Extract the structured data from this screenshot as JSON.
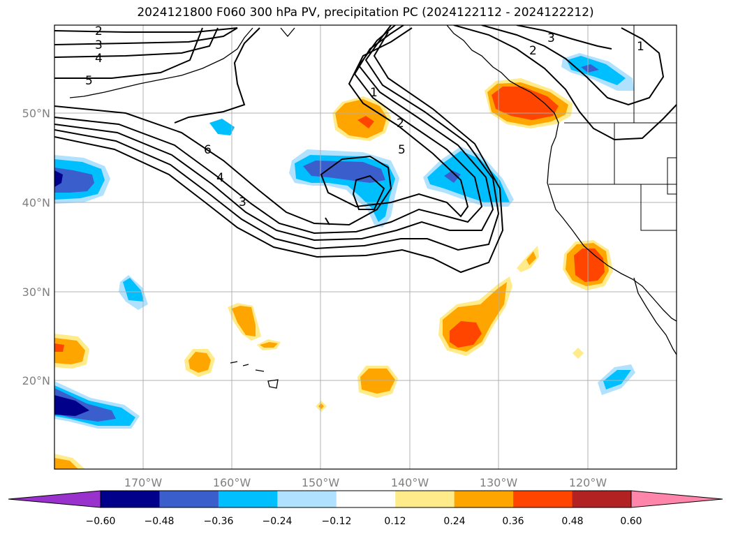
{
  "title": "2024121800 F060 300 hPa PV, precipitation PC (2024122112 - 2024122212)",
  "lat_labels": [
    "50°N",
    "40°N",
    "30°N",
    "20°N"
  ],
  "lon_labels": [
    "170°W",
    "160°W",
    "150°W",
    "140°W",
    "130°W",
    "120°W"
  ],
  "contour_labels": [
    "2",
    "3",
    "4",
    "5",
    "6",
    "4",
    "3",
    "1",
    "2",
    "5",
    "3",
    "2",
    "1"
  ],
  "colorbar": {
    "ticks": [
      "−0.60",
      "−0.48",
      "−0.36",
      "−0.24",
      "−0.12",
      "0.12",
      "0.24",
      "0.36",
      "0.48",
      "0.60"
    ],
    "under_color": "#9932cc",
    "over_color": "#ff85aa",
    "colors": [
      "#00008b",
      "#3a5fcd",
      "#00bfff",
      "#b0e2ff",
      "#ffffff",
      "#ffeb8a",
      "#ffa500",
      "#ff4500",
      "#b22222"
    ]
  },
  "chart_data": {
    "type": "heatmap",
    "title": "2024121800 F060 300 hPa PV, precipitation PC (2024122112 - 2024122212)",
    "lat_range": [
      10,
      60
    ],
    "lon_range": [
      -180,
      -110
    ],
    "lat_ticks": [
      50,
      40,
      30,
      20
    ],
    "lon_ticks": [
      -170,
      -160,
      -150,
      -140,
      -130,
      -120
    ],
    "grid": true,
    "contour_levels": [
      1,
      2,
      3,
      4,
      5,
      6
    ],
    "levels": [
      -0.6,
      -0.48,
      -0.36,
      -0.24,
      -0.12,
      0.12,
      0.24,
      0.36,
      0.48,
      0.6
    ],
    "colorbar_extend": "both"
  }
}
